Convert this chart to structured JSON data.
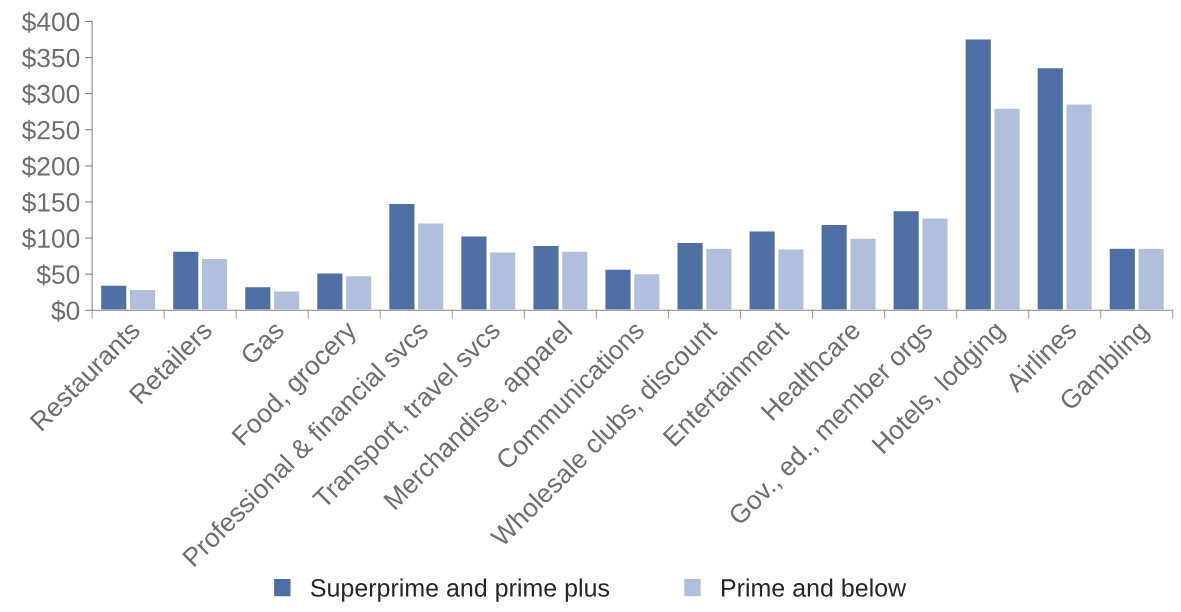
{
  "chart_data": {
    "type": "bar",
    "categories": [
      "Restaurants",
      "Retailers",
      "Gas",
      "Food, grocery",
      "Professional & financial svcs",
      "Transport, travel svcs",
      "Merchandise, apparel",
      "Communications",
      "Wholesale clubs, discount",
      "Entertainment",
      "Healthcare",
      "Gov., ed., member orgs",
      "Hotels, lodging",
      "Airlines",
      "Gambling"
    ],
    "series": [
      {
        "name": "Superprime and prime plus",
        "color": "#4e6fa1",
        "values": [
          35,
          82,
          33,
          52,
          148,
          103,
          90,
          57,
          94,
          110,
          119,
          138,
          376,
          336,
          86
        ]
      },
      {
        "name": "Prime and below",
        "color": "#b0bfdb",
        "values": [
          29,
          72,
          27,
          48,
          121,
          81,
          82,
          51,
          86,
          85,
          100,
          128,
          280,
          286,
          86
        ]
      }
    ],
    "ylim": [
      0,
      400
    ],
    "yticks": [
      {
        "value": 0,
        "label": "$0"
      },
      {
        "value": 50,
        "label": "$50"
      },
      {
        "value": 100,
        "label": "$100"
      },
      {
        "value": 150,
        "label": "$150"
      },
      {
        "value": 200,
        "label": "$200"
      },
      {
        "value": 250,
        "label": "$250"
      },
      {
        "value": 300,
        "label": "$300"
      },
      {
        "value": 350,
        "label": "$350"
      },
      {
        "value": 400,
        "label": "$400"
      }
    ],
    "grid": false,
    "legend": "bottom"
  }
}
